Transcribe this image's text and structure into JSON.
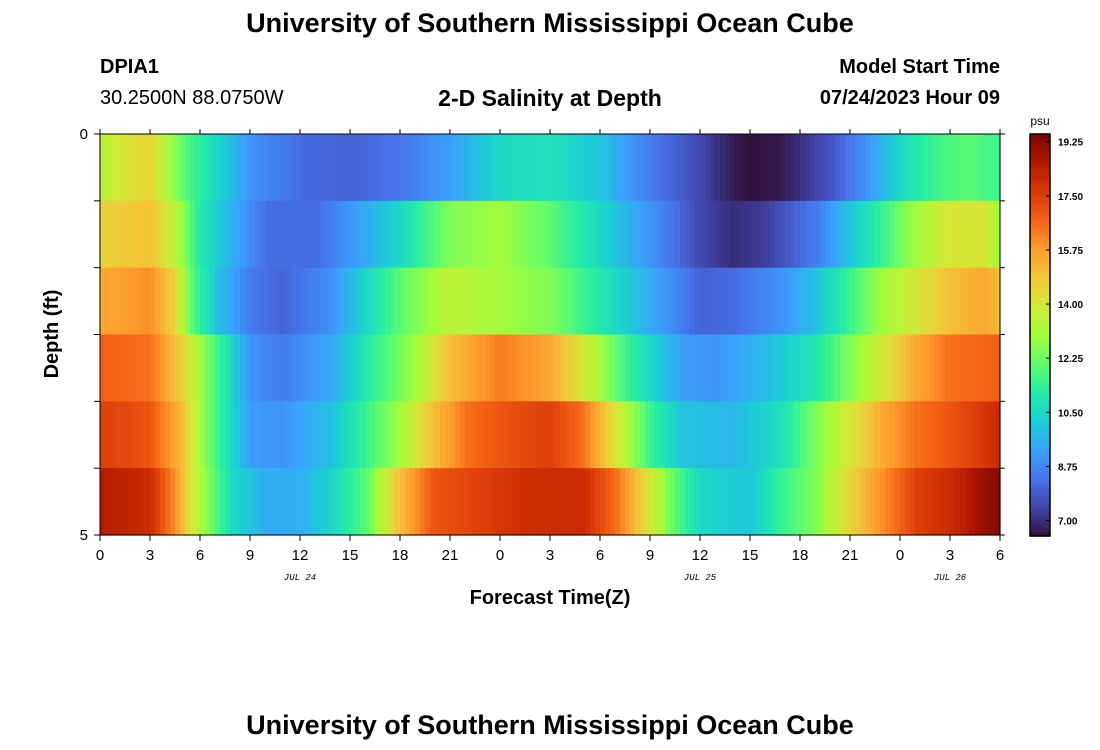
{
  "page": {
    "title_top": "University of Southern Mississippi Ocean Cube",
    "title_bottom": "University of Southern Mississippi Ocean Cube",
    "station": "DPIA1",
    "coords": "30.2500N  88.0750W",
    "center_title": "2-D Salinity at Depth",
    "model_label": "Model Start Time",
    "model_time": "07/24/2023 Hour 09"
  },
  "colors": {
    "colormap": [
      "#30123b",
      "#4145ab",
      "#4675ed",
      "#39a2fc",
      "#1bcfd4",
      "#24eca6",
      "#61fc6c",
      "#a4fc3b",
      "#d1e834",
      "#f3c63a",
      "#fe9b2d",
      "#f36315",
      "#d93806",
      "#b11901",
      "#7a0402"
    ]
  },
  "chart_data": {
    "type": "heatmap",
    "title": "2-D Salinity at Depth",
    "xlabel": "Forecast Time(Z)",
    "ylabel": "Depth (ft)",
    "x_tick_labels": [
      "0",
      "3",
      "6",
      "9",
      "12",
      "15",
      "18",
      "21",
      "0",
      "3",
      "6",
      "9",
      "12",
      "15",
      "18",
      "21",
      "0",
      "3",
      "6"
    ],
    "date_labels": [
      {
        "label": "JUL 24",
        "tick_index": 4
      },
      {
        "label": "JUL 25",
        "tick_index": 12
      },
      {
        "label": "JUL 26",
        "tick_index": 17
      }
    ],
    "x_range_hours": [
      0,
      54
    ],
    "y_tick_labels": [
      "0",
      "5"
    ],
    "y_range": [
      0,
      5
    ],
    "depth_levels": 5,
    "colorbar": {
      "unit": "psu",
      "ticks": [
        "7.00",
        "8.75",
        "10.50",
        "12.25",
        "14.00",
        "15.75",
        "17.50",
        "19.25"
      ],
      "range": [
        6.5,
        19.5
      ]
    },
    "salinity_rows": [
      {
        "depth_level": 0,
        "anchors": [
          [
            0,
            13.5
          ],
          [
            3,
            14.5
          ],
          [
            5,
            12
          ],
          [
            7,
            10.5
          ],
          [
            9,
            9
          ],
          [
            12,
            8.2
          ],
          [
            15,
            8
          ],
          [
            18,
            8.4
          ],
          [
            21,
            9.2
          ],
          [
            24,
            10.5
          ],
          [
            27,
            10.8
          ],
          [
            30,
            10
          ],
          [
            33,
            8.5
          ],
          [
            36,
            7.5
          ],
          [
            38,
            6.7
          ],
          [
            39,
            6.5
          ],
          [
            41,
            6.7
          ],
          [
            44,
            7.8
          ],
          [
            46,
            9
          ],
          [
            48,
            10.5
          ],
          [
            50,
            11.5
          ],
          [
            52,
            12
          ],
          [
            54,
            11.5
          ]
        ]
      },
      {
        "depth_level": 1,
        "anchors": [
          [
            0,
            14.5
          ],
          [
            3,
            15
          ],
          [
            4.5,
            13.5
          ],
          [
            6,
            11
          ],
          [
            8,
            9.5
          ],
          [
            10,
            8.2
          ],
          [
            13,
            8.2
          ],
          [
            16,
            9.5
          ],
          [
            18,
            10.5
          ],
          [
            21,
            12.5
          ],
          [
            24,
            13
          ],
          [
            27,
            12
          ],
          [
            30,
            10.5
          ],
          [
            33,
            9
          ],
          [
            36,
            7.5
          ],
          [
            38,
            7
          ],
          [
            40,
            7.3
          ],
          [
            43,
            8.5
          ],
          [
            45,
            10
          ],
          [
            47,
            11.5
          ],
          [
            49,
            13
          ],
          [
            51,
            14
          ],
          [
            53,
            14
          ],
          [
            54,
            13
          ]
        ]
      },
      {
        "depth_level": 2,
        "anchors": [
          [
            0,
            15.5
          ],
          [
            3,
            16
          ],
          [
            4.5,
            14.5
          ],
          [
            5.5,
            12
          ],
          [
            7,
            10
          ],
          [
            9,
            8.5
          ],
          [
            11,
            8
          ],
          [
            14,
            9
          ],
          [
            16,
            10.5
          ],
          [
            18,
            12
          ],
          [
            21,
            13.5
          ],
          [
            24,
            13
          ],
          [
            27,
            12.5
          ],
          [
            30,
            11
          ],
          [
            33,
            9.5
          ],
          [
            36,
            8
          ],
          [
            38,
            8.2
          ],
          [
            41,
            9
          ],
          [
            43,
            10
          ],
          [
            45,
            11.5
          ],
          [
            47,
            13
          ],
          [
            49,
            14
          ],
          [
            51,
            15
          ],
          [
            53,
            15.5
          ],
          [
            54,
            15
          ]
        ]
      },
      {
        "depth_level": 3,
        "anchors": [
          [
            0,
            16.8
          ],
          [
            3,
            16.5
          ],
          [
            5,
            14.5
          ],
          [
            6,
            13
          ],
          [
            7.5,
            11
          ],
          [
            9,
            9
          ],
          [
            11,
            8.5
          ],
          [
            14,
            9.5
          ],
          [
            16,
            11
          ],
          [
            19,
            13
          ],
          [
            21,
            15
          ],
          [
            24,
            16.3
          ],
          [
            27,
            15.5
          ],
          [
            29,
            14
          ],
          [
            31,
            12
          ],
          [
            33,
            10.5
          ],
          [
            35,
            9.2
          ],
          [
            37,
            9
          ],
          [
            40,
            9.8
          ],
          [
            43,
            11
          ],
          [
            45,
            12.5
          ],
          [
            47,
            14
          ],
          [
            49,
            15.5
          ],
          [
            51,
            16.5
          ],
          [
            54,
            16.8
          ]
        ]
      },
      {
        "depth_level": 4,
        "anchors": [
          [
            0,
            17.5
          ],
          [
            3,
            17
          ],
          [
            5,
            15
          ],
          [
            6,
            13
          ],
          [
            7.5,
            11
          ],
          [
            9,
            9.2
          ],
          [
            11,
            9
          ],
          [
            14,
            10
          ],
          [
            16,
            11.5
          ],
          [
            18,
            13
          ],
          [
            20,
            15
          ],
          [
            22,
            16.5
          ],
          [
            24,
            17
          ],
          [
            27,
            17.5
          ],
          [
            29,
            16.5
          ],
          [
            31,
            14
          ],
          [
            33,
            11.5
          ],
          [
            35,
            10
          ],
          [
            38,
            9.7
          ],
          [
            41,
            10.8
          ],
          [
            43,
            12.5
          ],
          [
            45,
            14
          ],
          [
            47,
            15.5
          ],
          [
            49,
            16.5
          ],
          [
            51,
            17
          ],
          [
            54,
            18
          ]
        ]
      },
      {
        "depth_level": 5,
        "anchors": [
          [
            0,
            18.5
          ],
          [
            3,
            18
          ],
          [
            4.5,
            16
          ],
          [
            5.5,
            14
          ],
          [
            6.5,
            12.5
          ],
          [
            8,
            10.5
          ],
          [
            10,
            9.5
          ],
          [
            12,
            9.5
          ],
          [
            14,
            10.5
          ],
          [
            16,
            12
          ],
          [
            17,
            13.5
          ],
          [
            18,
            15
          ],
          [
            20,
            17
          ],
          [
            23,
            17.5
          ],
          [
            26,
            18
          ],
          [
            29,
            18
          ],
          [
            31,
            16.5
          ],
          [
            33,
            14
          ],
          [
            34.5,
            12
          ],
          [
            36,
            10.5
          ],
          [
            39,
            10
          ],
          [
            41,
            11.5
          ],
          [
            43,
            12.5
          ],
          [
            45,
            14.5
          ],
          [
            47,
            16
          ],
          [
            49,
            17.5
          ],
          [
            51,
            18
          ],
          [
            53,
            19
          ],
          [
            54,
            19.3
          ]
        ]
      }
    ]
  }
}
